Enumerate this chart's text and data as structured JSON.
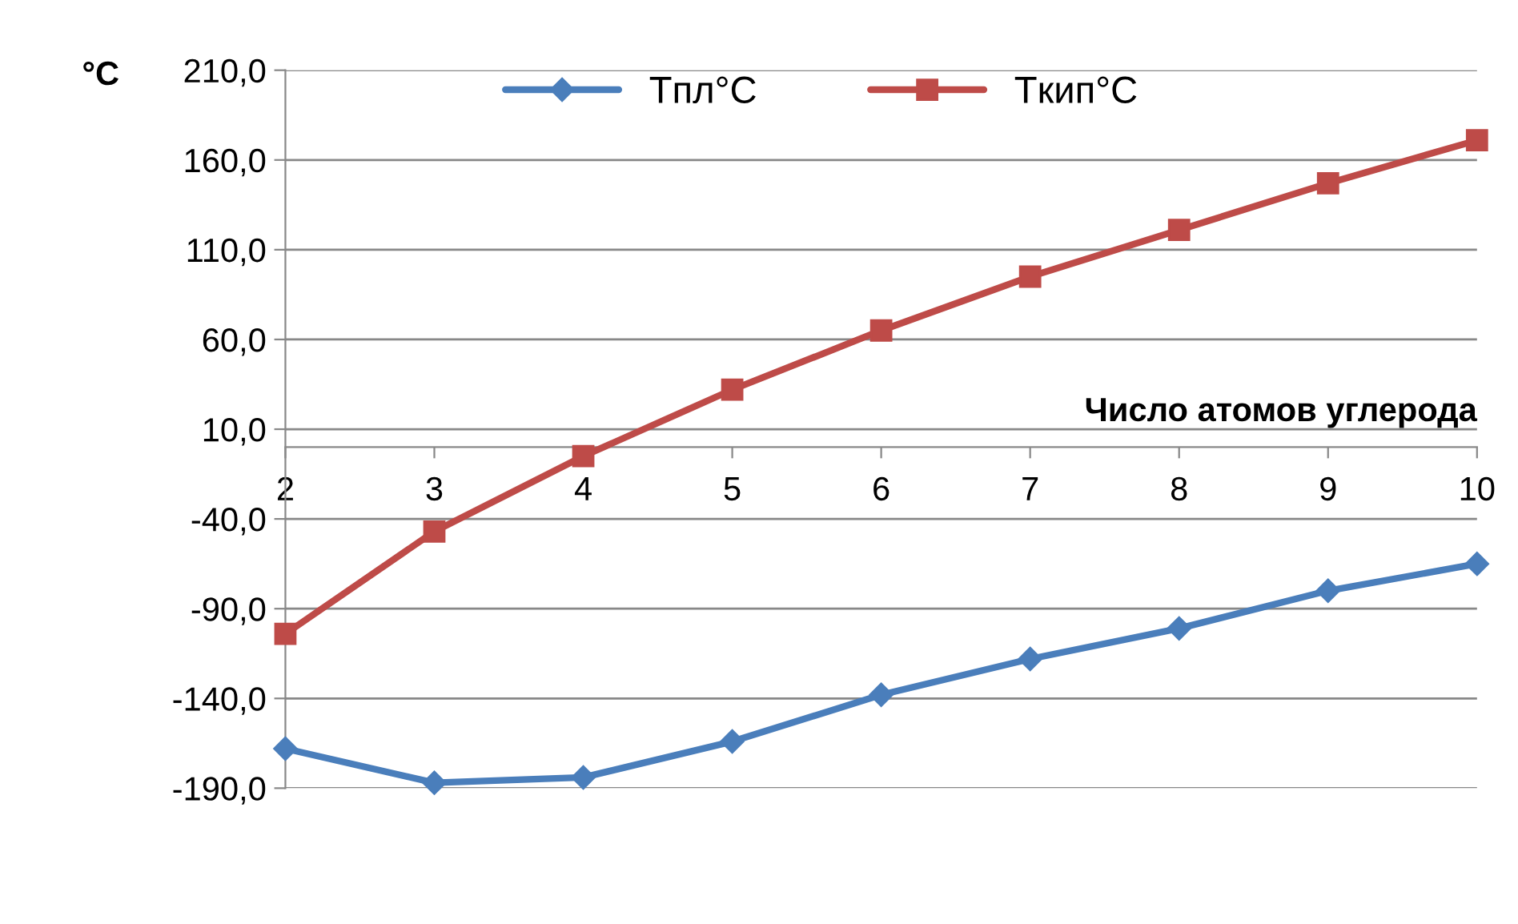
{
  "chart_data": {
    "type": "line",
    "xlabel": "Число атомов углерода",
    "ylabel": "°C",
    "x": [
      2,
      3,
      4,
      5,
      6,
      7,
      8,
      9,
      10
    ],
    "series": [
      {
        "name": "Tпл°C",
        "color": "#4a7ebb",
        "marker": "diamond",
        "values": [
          -168,
          -187,
          -184,
          -164,
          -138,
          -118,
          -101,
          -80,
          -65
        ]
      },
      {
        "name": "Tкип°C",
        "color": "#be4b48",
        "marker": "square",
        "values": [
          -104,
          -47,
          -5,
          32,
          65,
          95,
          121,
          147,
          171
        ]
      }
    ],
    "xlim": [
      2,
      10
    ],
    "xticks": [
      2,
      3,
      4,
      5,
      6,
      7,
      8,
      9,
      10
    ],
    "ylim": [
      -190,
      210
    ],
    "yticks": [
      {
        "value": -190,
        "label": "-190,0"
      },
      {
        "value": -140,
        "label": "-140,0"
      },
      {
        "value": -90,
        "label": "-90,0"
      },
      {
        "value": -40,
        "label": "-40,0"
      },
      {
        "value": 10,
        "label": "10,0"
      },
      {
        "value": 60,
        "label": "60,0"
      },
      {
        "value": 110,
        "label": "110,0"
      },
      {
        "value": 160,
        "label": "160,0"
      },
      {
        "value": 210,
        "label": "210,0"
      }
    ],
    "grid": "y",
    "legend": "top",
    "line_style": "solid"
  }
}
